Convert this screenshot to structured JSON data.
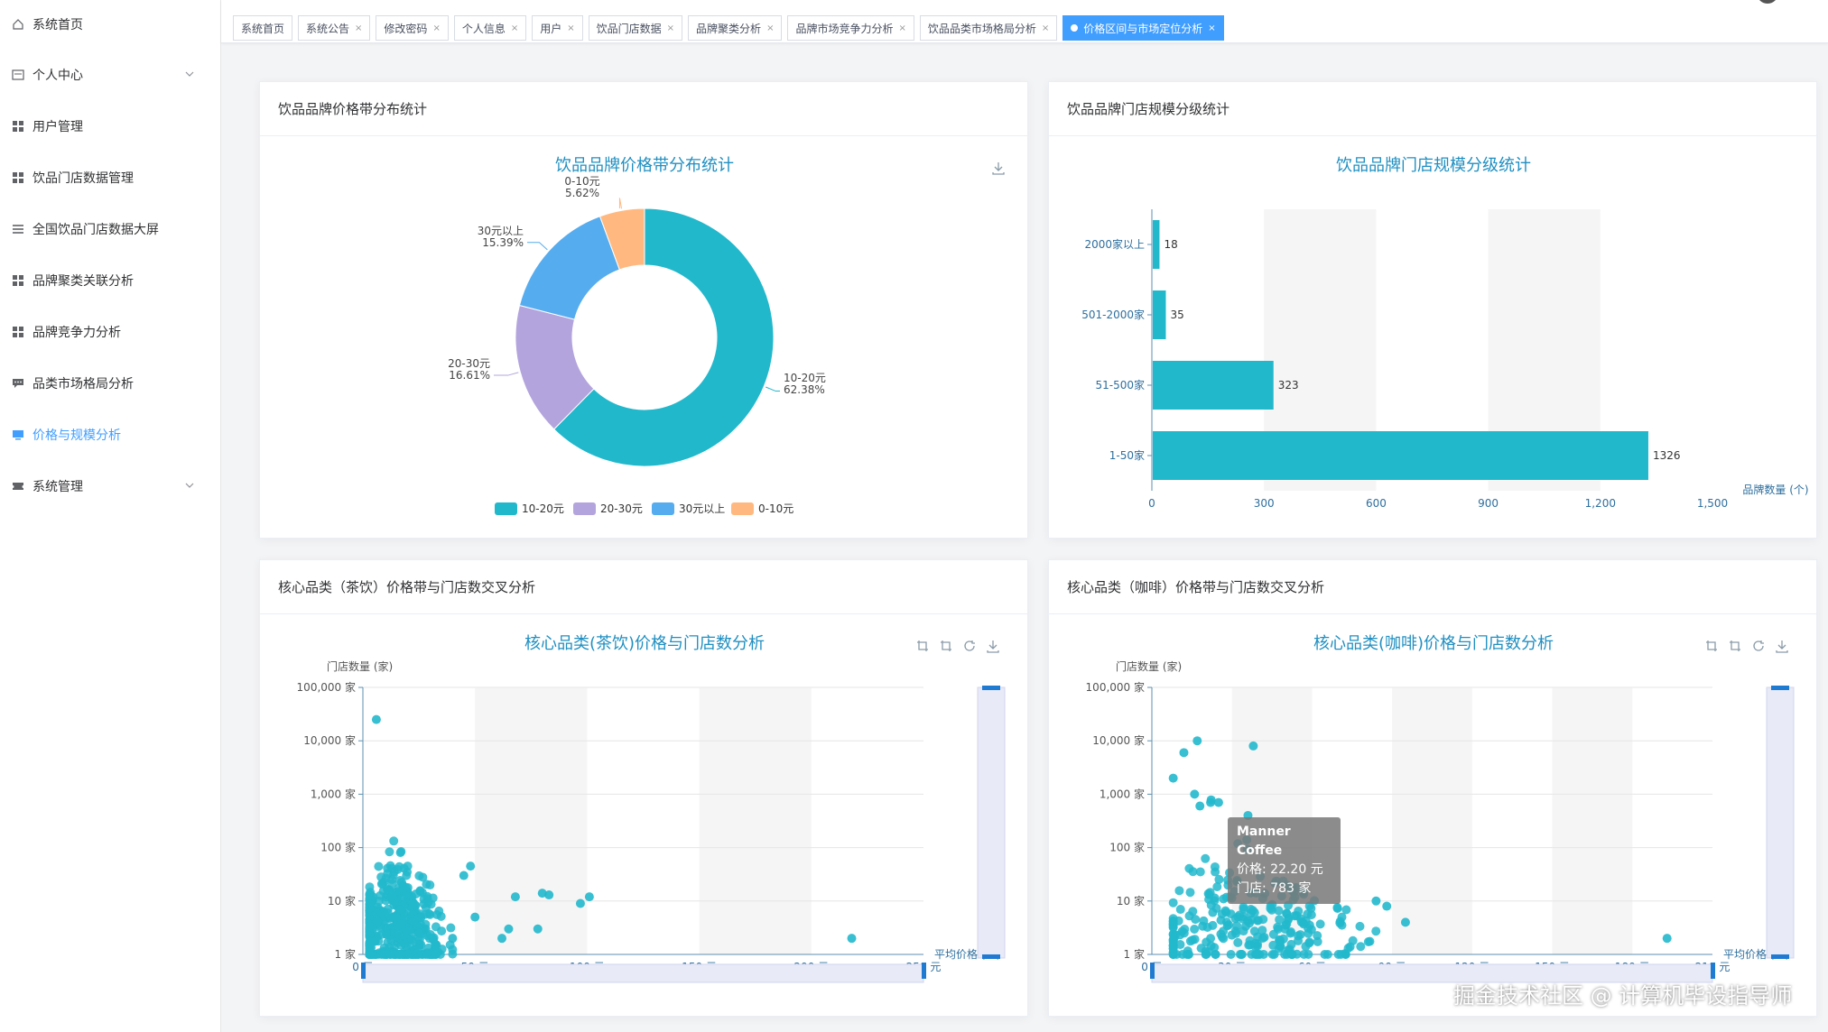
{
  "sidebar": {
    "items": [
      {
        "label": "系统首页",
        "icon": "home-icon"
      },
      {
        "label": "个人中心",
        "icon": "id-card-icon",
        "expandable": true
      },
      {
        "label": "用户管理",
        "icon": "grid-icon"
      },
      {
        "label": "饮品门店数据管理",
        "icon": "grid-icon"
      },
      {
        "label": "全国饮品门店数据大屏",
        "icon": "list-icon"
      },
      {
        "label": "品牌聚类关联分析",
        "icon": "grid-icon"
      },
      {
        "label": "品牌竞争力分析",
        "icon": "grid-icon"
      },
      {
        "label": "品类市场格局分析",
        "icon": "comment-icon"
      },
      {
        "label": "价格与规模分析",
        "icon": "monitor-icon",
        "active": true
      },
      {
        "label": "系统管理",
        "icon": "ticket-icon",
        "expandable": true
      }
    ]
  },
  "tabs": [
    {
      "label": "系统首页",
      "closable": false
    },
    {
      "label": "系统公告",
      "closable": true
    },
    {
      "label": "修改密码",
      "closable": true
    },
    {
      "label": "个人信息",
      "closable": true
    },
    {
      "label": "用户",
      "closable": true
    },
    {
      "label": "饮品门店数据",
      "closable": true
    },
    {
      "label": "品牌聚类分析",
      "closable": true
    },
    {
      "label": "品牌市场竞争力分析",
      "closable": true
    },
    {
      "label": "饮品品类市场格局分析",
      "closable": true
    },
    {
      "label": "价格区间与市场定位分析",
      "closable": true,
      "active": true
    }
  ],
  "tab_close_symbol": "×",
  "colors": {
    "accent": "#409eff",
    "teal": "#22b8cc",
    "purple": "#b3a4dd",
    "blue": "#55acee",
    "orange": "#ffb980",
    "scatter": "#22b8cc"
  },
  "cards": {
    "price_band": {
      "header": "饮品品牌价格带分布统计"
    },
    "store_scale": {
      "header": "饮品品牌门店规模分级统计"
    },
    "tea": {
      "header": "核心品类（茶饮）价格带与门店数交叉分析"
    },
    "coffee": {
      "header": "核心品类（咖啡）价格带与门店数交叉分析"
    }
  },
  "tooltip": {
    "title": "Manner Coffee",
    "price_line": "价格: 22.20 元",
    "stores_line": "门店: 783 家"
  },
  "watermark": "掘金技术社区 @ 计算机毕设指导师",
  "chart_data": [
    {
      "type": "pie",
      "title": "饮品品牌价格带分布统计",
      "donut": true,
      "slices": [
        {
          "name": "10-20元",
          "value": 62.38,
          "label": "62.38%"
        },
        {
          "name": "20-30元",
          "value": 16.61,
          "label": "16.61%"
        },
        {
          "name": "30元以上",
          "value": 15.39,
          "label": "15.39%"
        },
        {
          "name": "0-10元",
          "value": 5.62,
          "label": "5.62%"
        }
      ],
      "legend": [
        "10-20元",
        "20-30元",
        "30元以上",
        "0-10元"
      ],
      "legend_position": "bottom"
    },
    {
      "type": "bar",
      "orientation": "horizontal",
      "title": "饮品品牌门店规模分级统计",
      "categories": [
        "1-50家",
        "51-500家",
        "501-2000家",
        "2000家以上"
      ],
      "values": [
        1326,
        323,
        35,
        18
      ],
      "xlabel": "品牌数量 (个)",
      "xlim": [
        0,
        1500
      ],
      "xticks": [
        "0",
        "300",
        "600",
        "900",
        "1,200",
        "1,500"
      ]
    },
    {
      "type": "scatter",
      "title": "核心品类(茶饮)价格与门店数分析",
      "xlabel": "平均价格 (元)",
      "ylabel": "门店数量 (家)",
      "xlim": [
        0,
        250
      ],
      "ylim": [
        1,
        100000
      ],
      "ylog": true,
      "xticks": [
        "0 元",
        "50 元",
        "100 元",
        "150 元",
        "200 元",
        "250 元"
      ],
      "yticks": [
        "1 家",
        "10 家",
        "100 家",
        "1,000 家",
        "10,000 家",
        "100,000 家"
      ],
      "outliers": [
        [
          6,
          25000
        ],
        [
          40,
          2
        ],
        [
          28,
          3
        ],
        [
          45,
          30
        ],
        [
          48,
          45
        ],
        [
          50,
          5
        ],
        [
          62,
          2
        ],
        [
          65,
          3
        ],
        [
          68,
          12
        ],
        [
          78,
          3
        ],
        [
          80,
          14
        ],
        [
          83,
          13
        ],
        [
          97,
          9
        ],
        [
          101,
          12
        ],
        [
          218,
          2
        ]
      ],
      "cluster": {
        "x_range": [
          3,
          40
        ],
        "center": 15,
        "count": 450
      }
    },
    {
      "type": "scatter",
      "title": "核心品类(咖啡)价格与门店数分析",
      "xlabel": "平均价格 (元)",
      "ylabel": "门店数量 (家)",
      "xlim": [
        0,
        210
      ],
      "ylim": [
        1,
        100000
      ],
      "ylog": true,
      "xticks": [
        "0 元",
        "30 元",
        "60 元",
        "90 元",
        "120 元",
        "150 元",
        "180 元",
        "210 元"
      ],
      "yticks": [
        "1 家",
        "10 家",
        "100 家",
        "1,000 家",
        "10,000 家",
        "100,000 家"
      ],
      "outliers": [
        [
          8,
          2000
        ],
        [
          12,
          6000
        ],
        [
          17,
          10000
        ],
        [
          38,
          8000
        ],
        [
          16,
          1000
        ],
        [
          18,
          600
        ],
        [
          22,
          700
        ],
        [
          25,
          700
        ],
        [
          22.2,
          783
        ],
        [
          36,
          400
        ],
        [
          84,
          10
        ],
        [
          88,
          8
        ],
        [
          95,
          4
        ],
        [
          193,
          2
        ]
      ],
      "cluster": {
        "x_range": [
          8,
          85
        ],
        "center": 35,
        "count": 260
      }
    }
  ]
}
